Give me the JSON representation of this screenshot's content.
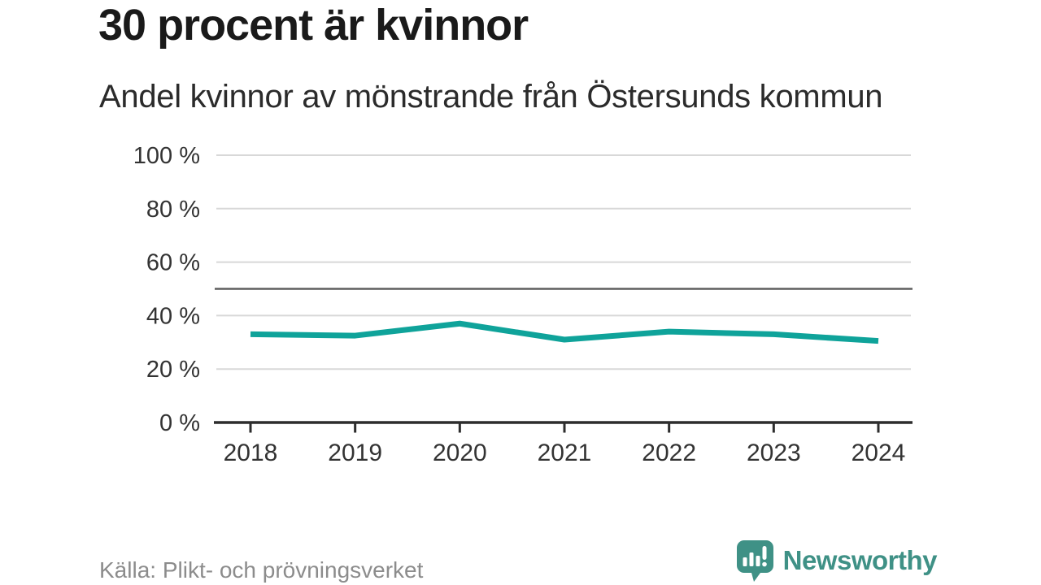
{
  "header": {
    "title": "30 procent är kvinnor",
    "subtitle": "Andel kvinnor av mönstrande från Östersunds kommun"
  },
  "footer": {
    "source": "Källa: Plikt- och prövningsverket",
    "brand_name": "Newsworthy",
    "logo_icon": "bar-chart-speech-bubble-icon"
  },
  "colors": {
    "line": "#0fa39a",
    "brand": "#3f9186",
    "grid": "#d8d8d8",
    "reference": "#5f5f5f",
    "axis": "#2d2d2d",
    "tick_text": "#333333",
    "source_text": "#8c8c8c"
  },
  "chart_data": {
    "type": "line",
    "title": "30 procent är kvinnor",
    "subtitle": "Andel kvinnor av mönstrande från Östersunds kommun",
    "categories": [
      "2018",
      "2019",
      "2020",
      "2021",
      "2022",
      "2023",
      "2024"
    ],
    "series": [
      {
        "name": "Andel kvinnor av mönstrande",
        "values": [
          33,
          32.5,
          37,
          31,
          34,
          33,
          30.5
        ]
      }
    ],
    "xlabel": "",
    "ylabel": "",
    "ylim": [
      0,
      100
    ],
    "yticks": [
      0,
      20,
      40,
      60,
      80,
      100
    ],
    "ytick_format": "{v} %",
    "reference_line": 50,
    "grid": true,
    "legend": false,
    "source": "Källa: Plikt- och prövningsverket"
  }
}
